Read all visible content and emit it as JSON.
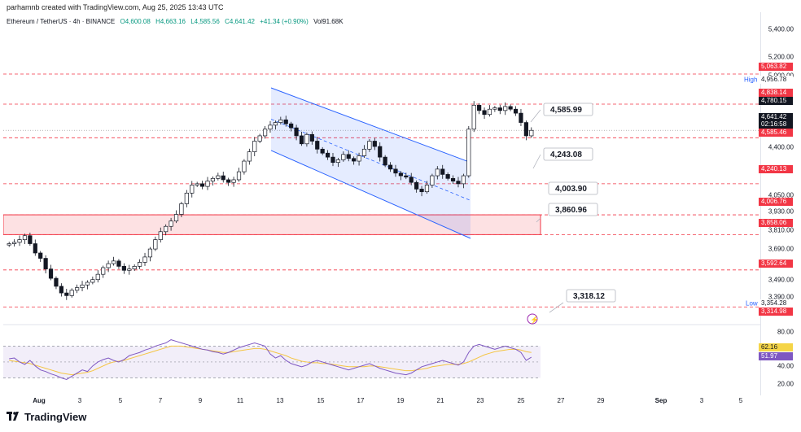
{
  "header": {
    "credit": "parhamnb created with TradingView.com, Aug 25, 2025 13:43 UTC"
  },
  "legend": {
    "symbol": "Ethereum / TetherUS · 4h · BINANCE",
    "open": "O4,600.08",
    "high": "H4,663.16",
    "low": "L4,585.56",
    "close": "C4,641.42",
    "change": "+41.34 (+0.90%)",
    "volume": "Vol91.68K"
  },
  "price_axis": {
    "ticks": [
      "5,400.00",
      "5,200.00",
      "5,000.00",
      "4,400.00",
      "4,050.00",
      "3,930.00",
      "3,810.00",
      "3,690.00",
      "3,490.00",
      "3,390.00",
      "80.00",
      "40.00",
      "20.00"
    ],
    "tags": [
      {
        "text": "5,063.82",
        "color": "#f23645"
      },
      {
        "text": "4,956.78",
        "color": "#ffffff"
      },
      {
        "text": "4,838.14",
        "color": "#f23645"
      },
      {
        "text": "4,780.15",
        "color": "#131722"
      },
      {
        "text": "4,641.42",
        "color": "#131722"
      },
      {
        "text": "02:16:58",
        "color": "#131722"
      },
      {
        "text": "4,585.46",
        "color": "#f23645"
      },
      {
        "text": "4,240.13",
        "color": "#f23645"
      },
      {
        "text": "4,006.76",
        "color": "#f23645"
      },
      {
        "text": "3,858.06",
        "color": "#f23645"
      },
      {
        "text": "3,592.64",
        "color": "#f23645"
      },
      {
        "text": "3,354.28",
        "color": "#ffffff"
      },
      {
        "text": "3,314.98",
        "color": "#f23645"
      },
      {
        "text": "62.16",
        "color": "#f5d547"
      },
      {
        "text": "51.97",
        "color": "#7e57c2"
      }
    ],
    "high_label": "High",
    "low_label": "Low"
  },
  "time_axis": {
    "labels": [
      "Aug",
      "3",
      "5",
      "7",
      "9",
      "11",
      "13",
      "15",
      "17",
      "19",
      "21",
      "23",
      "25",
      "27",
      "29",
      "Sep",
      "3",
      "5"
    ]
  },
  "chart_data": {
    "type": "candlestick",
    "symbol": "ETHUSDT",
    "timeframe": "4h",
    "exchange": "BINANCE",
    "ohlc": {
      "open": 4600.08,
      "high": 4663.16,
      "low": 4585.56,
      "close": 4641.42,
      "change": 41.34,
      "change_pct": 0.9,
      "volume": "91.68K"
    },
    "ylim": [
      3290,
      5450
    ],
    "horizontal_levels": [
      5063.82,
      4838.14,
      4585.46,
      4240.13,
      4006.76,
      3858.06,
      3592.64,
      3314.98
    ],
    "zone": [
      3858.06,
      4006.76
    ],
    "annotations": [
      4585.99,
      4243.08,
      4003.9,
      3860.96,
      3318.12
    ],
    "high": 4956.78,
    "low": 3354.28,
    "closes": [
      3790,
      3800,
      3820,
      3850,
      3790,
      3720,
      3680,
      3600,
      3530,
      3470,
      3420,
      3400,
      3440,
      3460,
      3480,
      3500,
      3520,
      3560,
      3610,
      3640,
      3660,
      3620,
      3590,
      3600,
      3620,
      3650,
      3690,
      3750,
      3820,
      3880,
      3920,
      3960,
      4010,
      4090,
      4170,
      4230,
      4240,
      4220,
      4260,
      4280,
      4300,
      4270,
      4250,
      4270,
      4330,
      4410,
      4480,
      4560,
      4600,
      4650,
      4680,
      4700,
      4720,
      4690,
      4660,
      4600,
      4540,
      4610,
      4560,
      4500,
      4470,
      4440,
      4400,
      4420,
      4460,
      4430,
      4410,
      4450,
      4500,
      4560,
      4520,
      4440,
      4380,
      4350,
      4320,
      4300,
      4290,
      4250,
      4200,
      4180,
      4230,
      4300,
      4350,
      4310,
      4280,
      4260,
      4240,
      4300,
      4650,
      4830,
      4790,
      4760,
      4800,
      4810,
      4790,
      4820,
      4800,
      4770,
      4700,
      4600,
      4641
    ],
    "rsi": {
      "values": [
        54,
        55,
        50,
        47,
        52,
        45,
        40,
        38,
        35,
        33,
        30,
        28,
        32,
        36,
        40,
        38,
        45,
        50,
        53,
        55,
        52,
        50,
        53,
        58,
        60,
        62,
        65,
        67,
        70,
        72,
        74,
        78,
        76,
        74,
        72,
        70,
        68,
        66,
        65,
        63,
        62,
        60,
        62,
        65,
        68,
        70,
        72,
        74,
        72,
        70,
        60,
        55,
        58,
        52,
        48,
        46,
        44,
        46,
        50,
        52,
        50,
        48,
        46,
        44,
        42,
        40,
        42,
        44,
        46,
        48,
        45,
        42,
        40,
        38,
        36,
        35,
        34,
        36,
        40,
        44,
        46,
        48,
        50,
        52,
        50,
        48,
        46,
        50,
        62,
        70,
        72,
        70,
        68,
        66,
        68,
        70,
        68,
        66,
        62,
        52,
        56
      ],
      "ma_values": [
        52,
        51,
        50,
        49,
        48,
        46,
        44,
        42,
        40,
        38,
        36,
        35,
        34,
        35,
        36,
        37,
        39,
        42,
        45,
        48,
        50,
        51,
        52,
        54,
        56,
        58,
        60,
        62,
        64,
        66,
        68,
        70,
        70,
        70,
        69,
        68,
        67,
        66,
        65,
        64,
        63,
        62,
        62,
        63,
        64,
        65,
        66,
        67,
        67,
        66,
        64,
        62,
        60,
        58,
        55,
        53,
        51,
        50,
        49,
        49,
        48,
        48,
        47,
        46,
        45,
        44,
        44,
        44,
        44,
        45,
        45,
        44,
        43,
        42,
        41,
        40,
        39,
        39,
        40,
        41,
        42,
        44,
        45,
        46,
        47,
        47,
        47,
        48,
        50,
        53,
        56,
        59,
        61,
        63,
        64,
        65,
        66,
        66,
        65,
        63,
        62
      ],
      "ylim": [
        10,
        95
      ],
      "bands": [
        70,
        30
      ]
    }
  }
}
